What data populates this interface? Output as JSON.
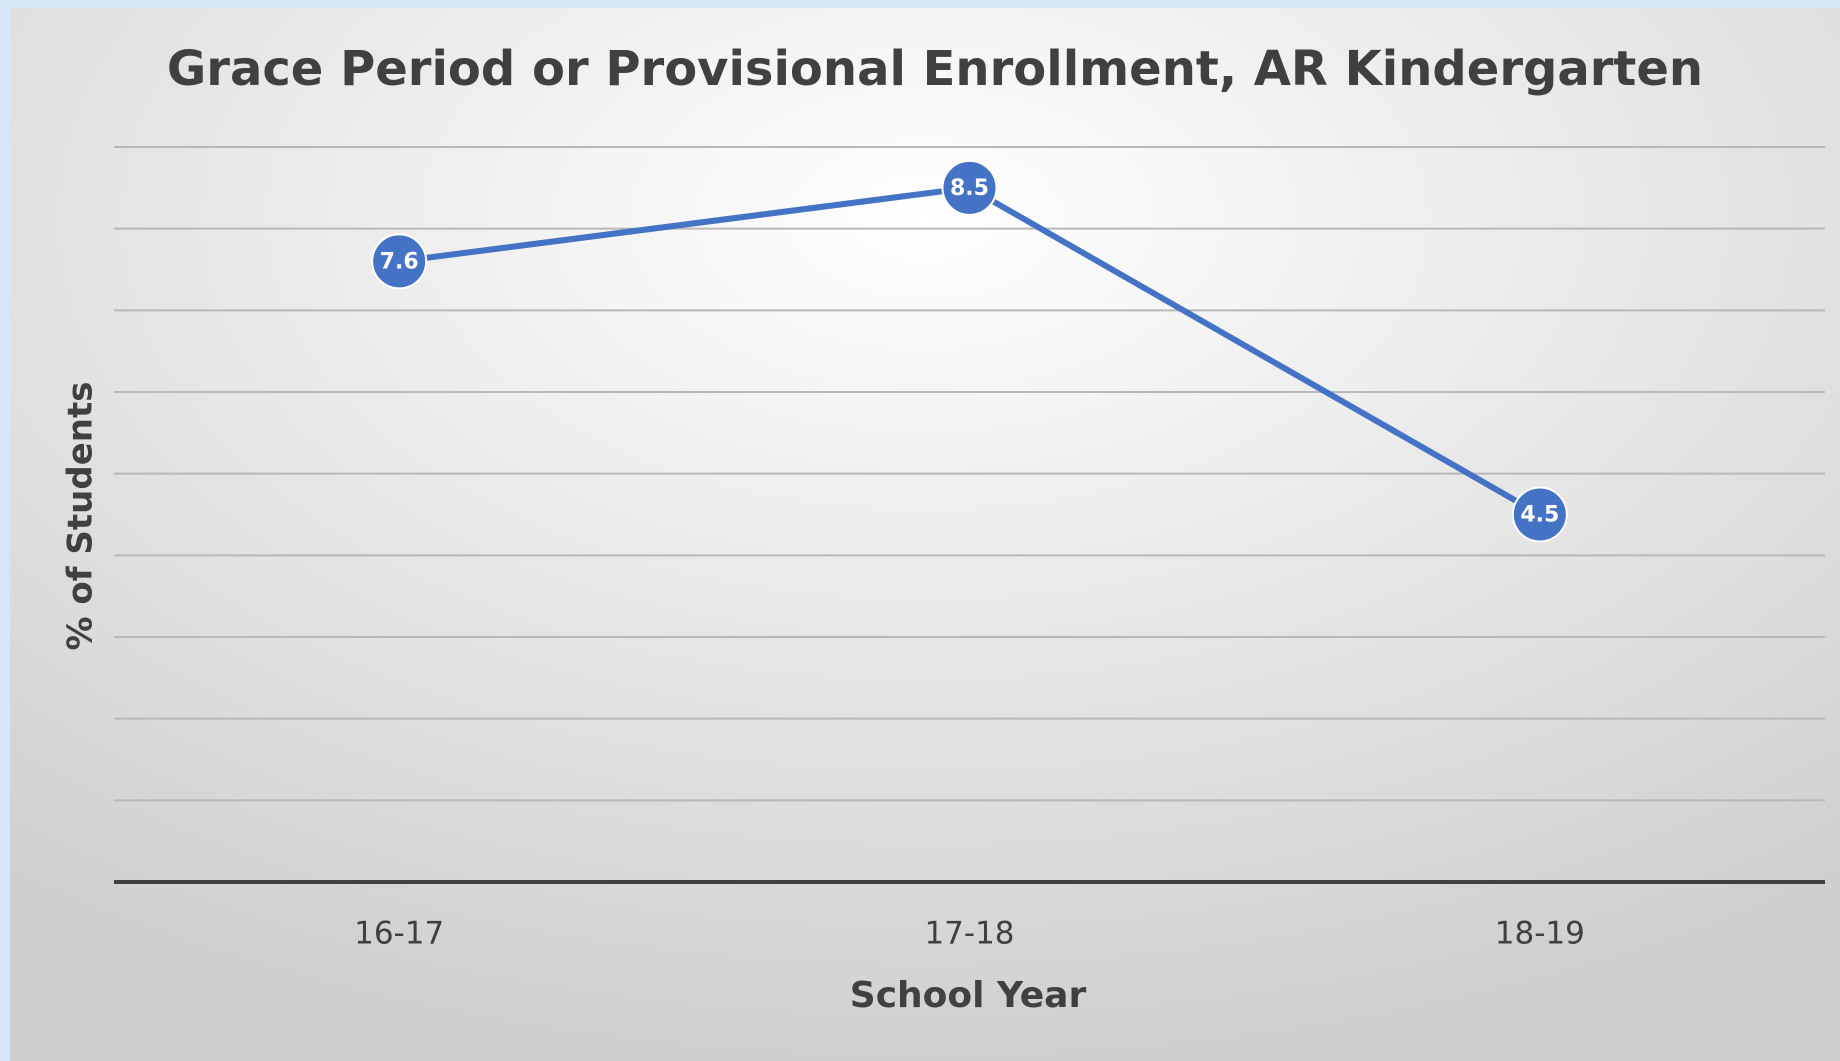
{
  "chart_data": {
    "type": "line",
    "title": "Grace Period or Provisional Enrollment, AR Kindergarten",
    "x_label": "School Year",
    "y_label": "% of Students",
    "categories": [
      "16-17",
      "17-18",
      "18-19"
    ],
    "series": [
      {
        "name": null,
        "color": "#4472c4",
        "values": [
          7.6,
          8.5,
          4.5
        ]
      }
    ],
    "ylim": [
      0,
      9
    ],
    "yticks": [
      0,
      1,
      2,
      3,
      4,
      5,
      6,
      7,
      8,
      9
    ],
    "grid": true
  }
}
